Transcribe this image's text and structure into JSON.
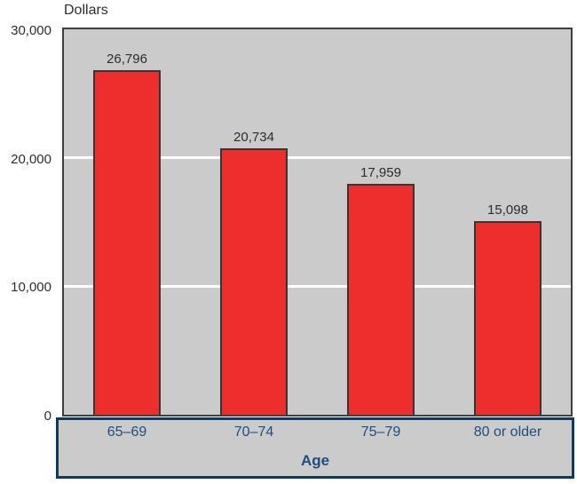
{
  "chart_data": {
    "type": "bar",
    "title": "",
    "ylabel": "Dollars",
    "xlabel": "Age",
    "categories": [
      "65–69",
      "70–74",
      "75–79",
      "80 or older"
    ],
    "values": [
      26796,
      20734,
      17959,
      15098
    ],
    "value_labels": [
      "26,796",
      "20,734",
      "17,959",
      "15,098"
    ],
    "ylim": [
      0,
      30000
    ],
    "yticks": [
      0,
      10000,
      20000,
      30000
    ],
    "ytick_labels": [
      "0",
      "10,000",
      "20,000",
      "30,000"
    ],
    "gridlines": [
      10000,
      20000
    ],
    "legend": "none",
    "grid": "horizontal white lines at 10,000 and 20,000 behind bars",
    "colors": {
      "bar_fill": "#ee2d2d",
      "bar_border": "#363636",
      "plot_background": "#cbcbcb",
      "plot_border": "#3f3f3f",
      "gridline": "#ffffff",
      "axis_text": "#2d2d2d",
      "category_text": "#1d4e7d",
      "band_border": "#0e3b61",
      "page_background": "#ffffff"
    }
  }
}
